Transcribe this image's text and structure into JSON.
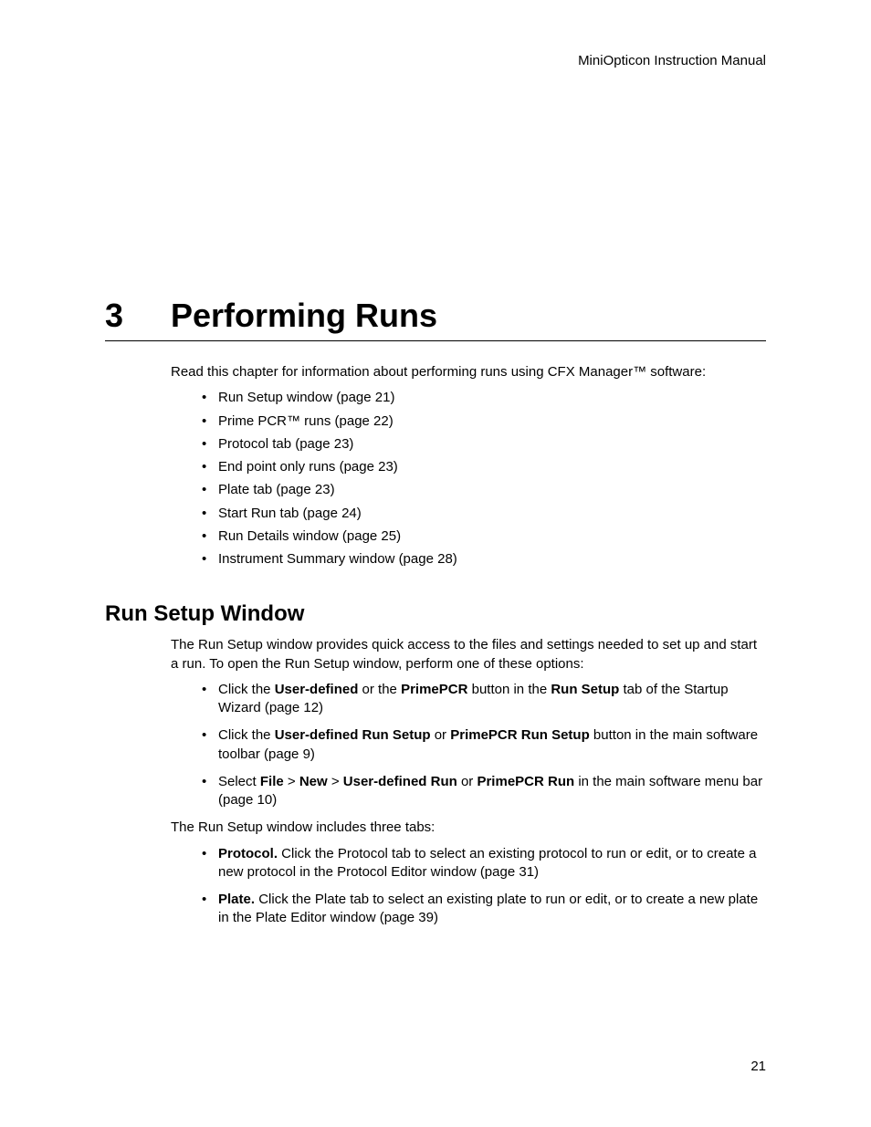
{
  "header": {
    "running": "MiniOpticon Instruction Manual"
  },
  "chapter": {
    "number": "3",
    "title": "Performing Runs",
    "intro": "Read this chapter for information about performing runs using CFX Manager™ software:",
    "toc": [
      "Run Setup window (page 21)",
      "Prime PCR™ runs (page 22)",
      "Protocol tab (page 23)",
      "End point only runs (page 23)",
      "Plate tab (page 23)",
      "Start Run tab (page 24)",
      "Run Details window (page 25)",
      "Instrument Summary window (page 28)"
    ]
  },
  "section": {
    "heading": "Run Setup Window",
    "para1": "The Run Setup window provides quick access to the files and settings needed to set up and start a run. To open the Run Setup window, perform one of these options:",
    "options": [
      {
        "pre": "Click the ",
        "b1": "User-defined",
        "mid1": " or the ",
        "b2": "PrimePCR",
        "mid2": " button in the ",
        "b3": "Run Setup",
        "post": " tab of the Startup Wizard (page 12)"
      },
      {
        "pre": "Click the ",
        "b1": "User-defined Run Setup",
        "mid1": " or ",
        "b2": "PrimePCR Run Setup",
        "post": " button in the main software toolbar (page 9)"
      },
      {
        "pre": "Select ",
        "b1": "File",
        "mid1": " > ",
        "b2": "New",
        "mid2": " > ",
        "b3": "User-defined Run",
        "mid3": " or ",
        "b4": "PrimePCR Run",
        "post": " in the main software menu bar (page 10)"
      }
    ],
    "para2": "The Run Setup window includes three tabs:",
    "tabs": [
      {
        "b": "Protocol.",
        "text": " Click the Protocol tab to select an existing protocol to run or edit, or to create a new protocol in the Protocol Editor window (page 31)"
      },
      {
        "b": "Plate.",
        "text": " Click the Plate tab to select an existing plate to run or edit, or to create a new plate in the Plate Editor window (page 39)"
      }
    ]
  },
  "pageNumber": "21"
}
